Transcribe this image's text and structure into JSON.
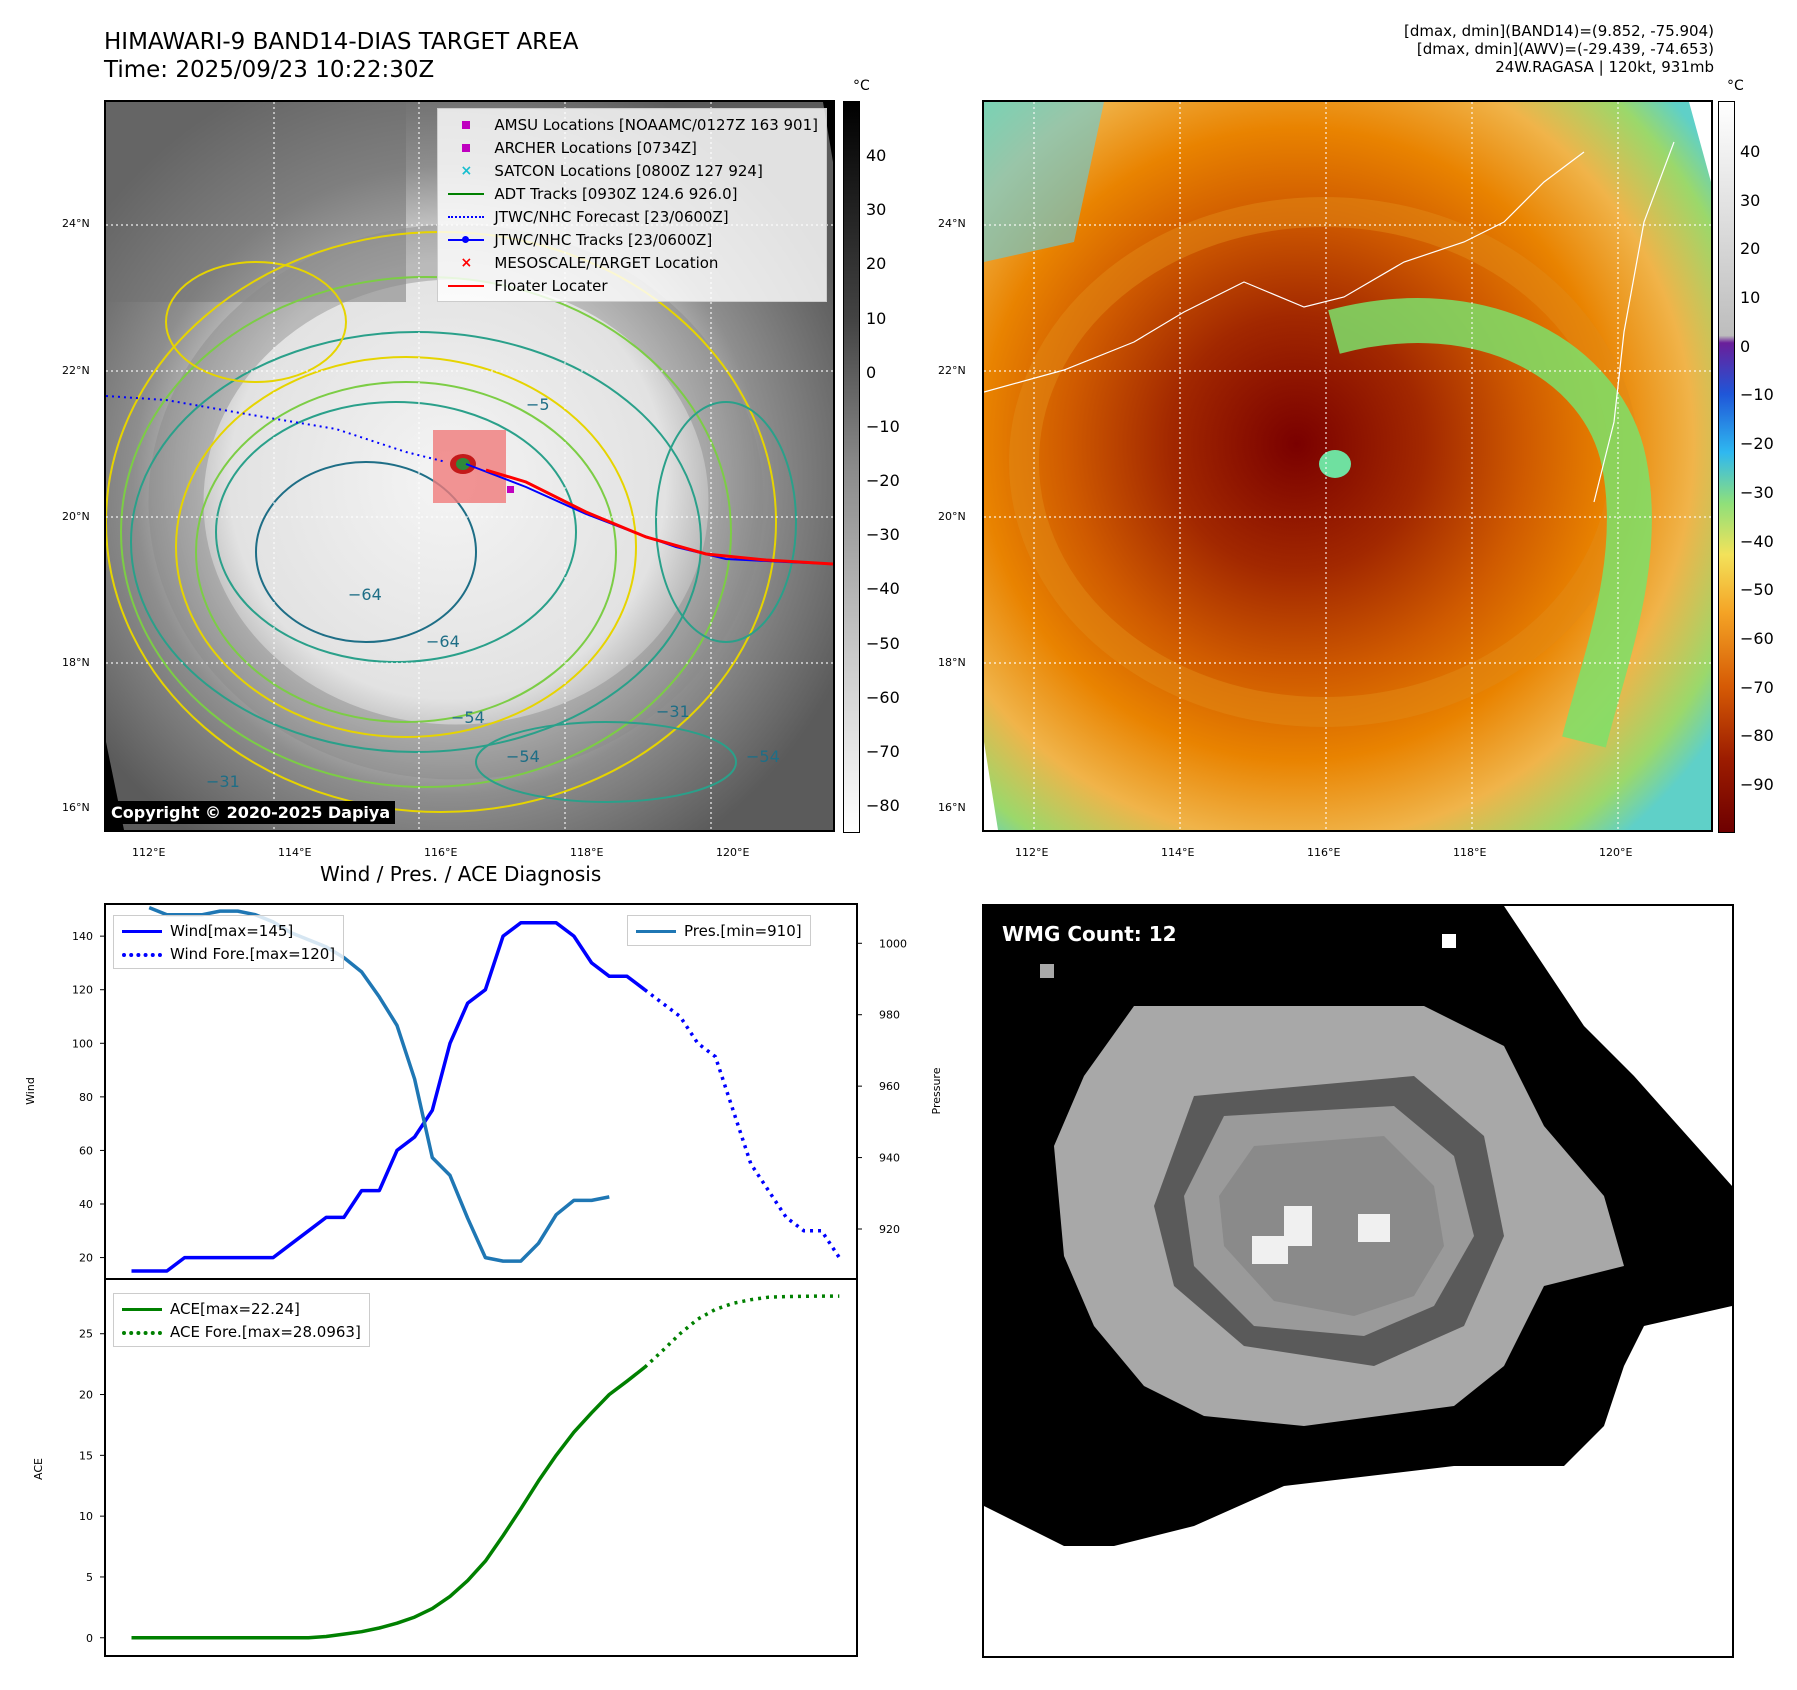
{
  "header": {
    "title_line1": "HIMAWARI-9 BAND14-DIAS TARGET AREA",
    "title_line2": "Time: 2025/09/23 10:22:30Z",
    "info_line1": "[dmax, dmin](BAND14)=(9.852, -75.904)",
    "info_line2": "[dmax, dmin](AWV)=(-29.439, -74.653)",
    "info_line3": "24W.RAGASA | 120kt, 931mb"
  },
  "map_axes": {
    "lat_labels": [
      "24°N",
      "22°N",
      "20°N",
      "18°N",
      "16°N"
    ],
    "lon_labels": [
      "112°E",
      "114°E",
      "116°E",
      "118°E",
      "120°E"
    ]
  },
  "ir_panel": {
    "colorbar_unit": "°C",
    "colorbar_ticks": [
      "40",
      "30",
      "20",
      "10",
      "0",
      "−10",
      "−20",
      "−30",
      "−40",
      "−50",
      "−60",
      "−70",
      "−80"
    ],
    "contour_labels": [
      "−64",
      "−64",
      "−54",
      "−54",
      "−31",
      "−31",
      "−5",
      "−54"
    ],
    "legend": [
      {
        "label": "AMSU Locations [NOAAMC/0127Z 163 901]",
        "symbol": "square",
        "color": "#bf00bf"
      },
      {
        "label": "ARCHER Locations [0734Z]",
        "symbol": "square",
        "color": "#bf00bf"
      },
      {
        "label": "SATCON Locations [0800Z 127 924]",
        "symbol": "x",
        "color": "#17becf"
      },
      {
        "label": "ADT Tracks [0930Z 124.6 926.0]",
        "symbol": "line",
        "color": "#008000"
      },
      {
        "label": "JTWC/NHC Forecast [23/0600Z]",
        "symbol": "dotted",
        "color": "#0000ff"
      },
      {
        "label": "JTWC/NHC Tracks [23/0600Z]",
        "symbol": "line-dot",
        "color": "#0000ff"
      },
      {
        "label": "MESOSCALE/TARGET Location",
        "symbol": "x",
        "color": "#ff0000"
      },
      {
        "label": "Floater Locater",
        "symbol": "line",
        "color": "#ff0000"
      }
    ],
    "copyright": "Copyright © 2020-2025 Dapiya"
  },
  "color_panel": {
    "colorbar_unit": "°C",
    "colorbar_ticks": [
      "40",
      "30",
      "20",
      "10",
      "0",
      "−10",
      "−20",
      "−30",
      "−40",
      "−50",
      "−60",
      "−70",
      "−80",
      "−90"
    ]
  },
  "wmg_panel": {
    "label": "WMG Count: 12"
  },
  "chart_data": [
    {
      "type": "line",
      "title": "Wind / Pres. / ACE Diagnosis",
      "ylabel": "Wind",
      "ylabel_right": "Pressure",
      "ylim": [
        12,
        152
      ],
      "ylim_right": [
        906,
        1011
      ],
      "yticks": [
        20,
        40,
        60,
        80,
        100,
        120,
        140
      ],
      "yticks_right": [
        920,
        940,
        960,
        980,
        1000
      ],
      "series": [
        {
          "name": "Wind[max=145]",
          "color": "#0000ff",
          "style": "solid",
          "axis": "left",
          "x": [
            0,
            1,
            2,
            3,
            4,
            5,
            6,
            7,
            8,
            9,
            10,
            11,
            12,
            13,
            14,
            15,
            16,
            17,
            18,
            19,
            20,
            21,
            22,
            23,
            24,
            25,
            26,
            27,
            28,
            29,
            30
          ],
          "y": [
            15,
            15,
            15,
            20,
            20,
            20,
            20,
            20,
            20,
            25,
            30,
            35,
            35,
            45,
            45,
            60,
            65,
            75,
            100,
            115,
            120,
            140,
            145,
            145,
            145,
            140,
            130,
            125,
            125,
            120,
            null
          ]
        },
        {
          "name": "Wind Fore.[max=120]",
          "color": "#0000ff",
          "style": "dotted",
          "axis": "left",
          "x": [
            29,
            30,
            31,
            32,
            33,
            34,
            35,
            36,
            37,
            38,
            39,
            40
          ],
          "y": [
            120,
            115,
            110,
            100,
            95,
            75,
            55,
            45,
            35,
            30,
            30,
            20
          ]
        },
        {
          "name": "Pres.[min=910]",
          "color": "#1f77b4",
          "style": "solid",
          "axis": "right",
          "x": [
            1,
            2,
            3,
            4,
            5,
            6,
            7,
            8,
            9,
            10,
            11,
            12,
            13,
            14,
            15,
            16,
            17,
            18,
            19,
            20,
            21,
            22,
            23,
            24,
            25,
            26,
            27,
            28,
            29
          ],
          "y": [
            1010,
            1008,
            1008,
            1008,
            1009,
            1009,
            1008,
            1006,
            1003,
            1001,
            999,
            996,
            992,
            985,
            977,
            962,
            940,
            935,
            923,
            912,
            911,
            911,
            916,
            924,
            928,
            928,
            929,
            null,
            null
          ]
        }
      ],
      "x_range": [
        -1.5,
        41
      ]
    },
    {
      "type": "line",
      "ylabel": "ACE",
      "ylim": [
        -1.5,
        29.5
      ],
      "yticks": [
        0,
        5,
        10,
        15,
        20,
        25
      ],
      "series": [
        {
          "name": "ACE[max=22.24]",
          "color": "#008000",
          "style": "solid",
          "x": [
            0,
            1,
            2,
            3,
            4,
            5,
            6,
            7,
            8,
            9,
            10,
            11,
            12,
            13,
            14,
            15,
            16,
            17,
            18,
            19,
            20,
            21,
            22,
            23,
            24,
            25,
            26,
            27,
            28,
            29
          ],
          "y": [
            0,
            0,
            0,
            0,
            0,
            0,
            0,
            0,
            0,
            0,
            0,
            0.1,
            0.3,
            0.5,
            0.8,
            1.2,
            1.7,
            2.4,
            3.4,
            4.7,
            6.3,
            8.4,
            10.6,
            12.9,
            15.0,
            16.9,
            18.5,
            20.0,
            21.1,
            22.24
          ]
        },
        {
          "name": "ACE Fore.[max=28.0963]",
          "color": "#008000",
          "style": "dotted",
          "x": [
            29,
            30,
            31,
            32,
            33,
            34,
            35,
            36,
            37,
            38,
            39,
            40
          ],
          "y": [
            22.24,
            23.6,
            25.0,
            26.2,
            27.0,
            27.5,
            27.8,
            28.0,
            28.05,
            28.08,
            28.09,
            28.0963
          ]
        }
      ],
      "x_range": [
        -1.5,
        41
      ]
    }
  ]
}
